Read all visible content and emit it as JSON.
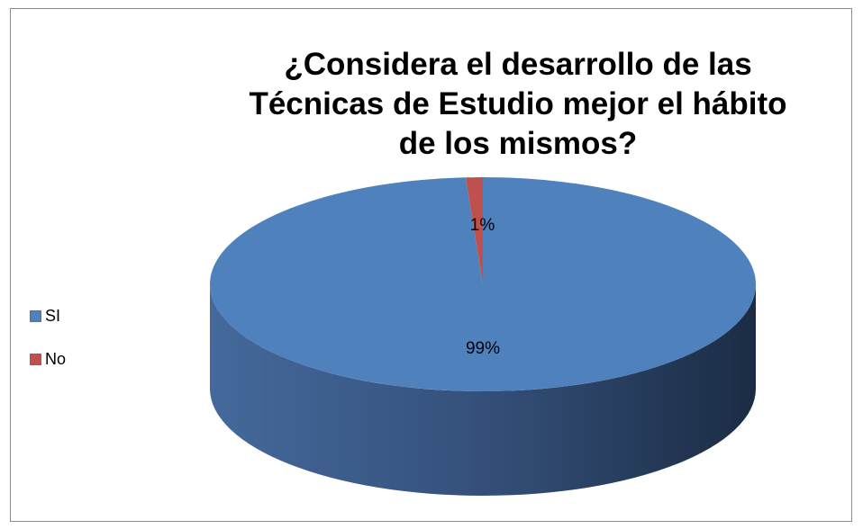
{
  "chart_data": {
    "type": "pie",
    "title": "¿Considera el desarrollo de las Técnicas de Estudio mejor el hábito de los mismos?",
    "categories": [
      "SI",
      "No"
    ],
    "values": [
      99,
      1
    ],
    "value_labels": [
      "99%",
      "1%"
    ],
    "colors": [
      "#4f81bd",
      "#c0504d"
    ],
    "legend": "left",
    "three_d": true
  }
}
